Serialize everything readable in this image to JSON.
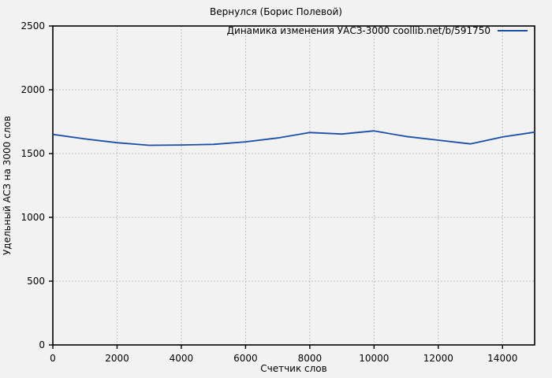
{
  "chart_data": {
    "type": "line",
    "title": "Вернулся (Борис Полевой)",
    "xlabel": "Счетчик слов",
    "ylabel": "Удельный АСЗ на 3000 слов",
    "legend_position": "top-right-inside",
    "grid": true,
    "xlim": [
      0,
      15000
    ],
    "ylim": [
      0,
      2500
    ],
    "xticks": [
      0,
      2000,
      4000,
      6000,
      8000,
      10000,
      12000,
      14000
    ],
    "yticks": [
      0,
      500,
      1000,
      1500,
      2000,
      2500
    ],
    "series": [
      {
        "name": "Динамика изменения УАСЗ-3000 coollib.net/b/591750",
        "x": [
          0,
          1000,
          2000,
          3000,
          4000,
          5000,
          6000,
          7000,
          8000,
          9000,
          10000,
          11000,
          12000,
          13000,
          14000,
          15000
        ],
        "values": [
          1650,
          1615,
          1585,
          1565,
          1567,
          1572,
          1592,
          1622,
          1665,
          1653,
          1678,
          1634,
          1605,
          1576,
          1630,
          1668
        ]
      }
    ],
    "colors": {
      "line": "#1b4ea6",
      "grid": "#bdbdbd",
      "axis": "#000000",
      "text": "#000000",
      "background": "#f2f2f2"
    }
  }
}
